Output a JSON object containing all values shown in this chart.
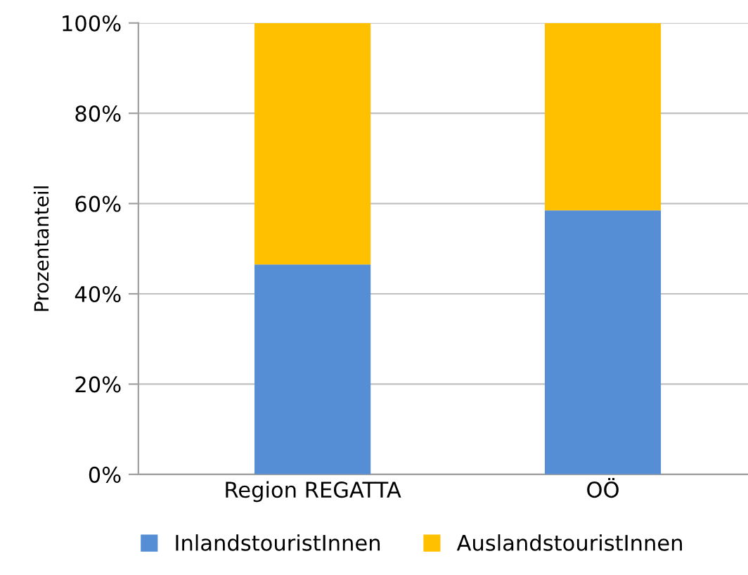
{
  "chart_data": {
    "type": "bar",
    "stacked": true,
    "ylabel": "Prozentanteil",
    "categories": [
      "Region REGATTA",
      "OÖ"
    ],
    "series": [
      {
        "name": "InlandstouristInnen",
        "color": "#558ed5",
        "values": [
          46.5,
          58.5
        ]
      },
      {
        "name": "AuslandstouristInnen",
        "color": "#ffc000",
        "values": [
          53.5,
          41.5
        ]
      }
    ],
    "ylim": [
      0,
      100
    ],
    "yticks": [
      {
        "value": 0,
        "label": "0%"
      },
      {
        "value": 20,
        "label": "20%"
      },
      {
        "value": 40,
        "label": "40%"
      },
      {
        "value": 60,
        "label": "60%"
      },
      {
        "value": 80,
        "label": "80%"
      },
      {
        "value": 100,
        "label": "100%"
      }
    ],
    "grid": "y",
    "legend": "bottom"
  }
}
